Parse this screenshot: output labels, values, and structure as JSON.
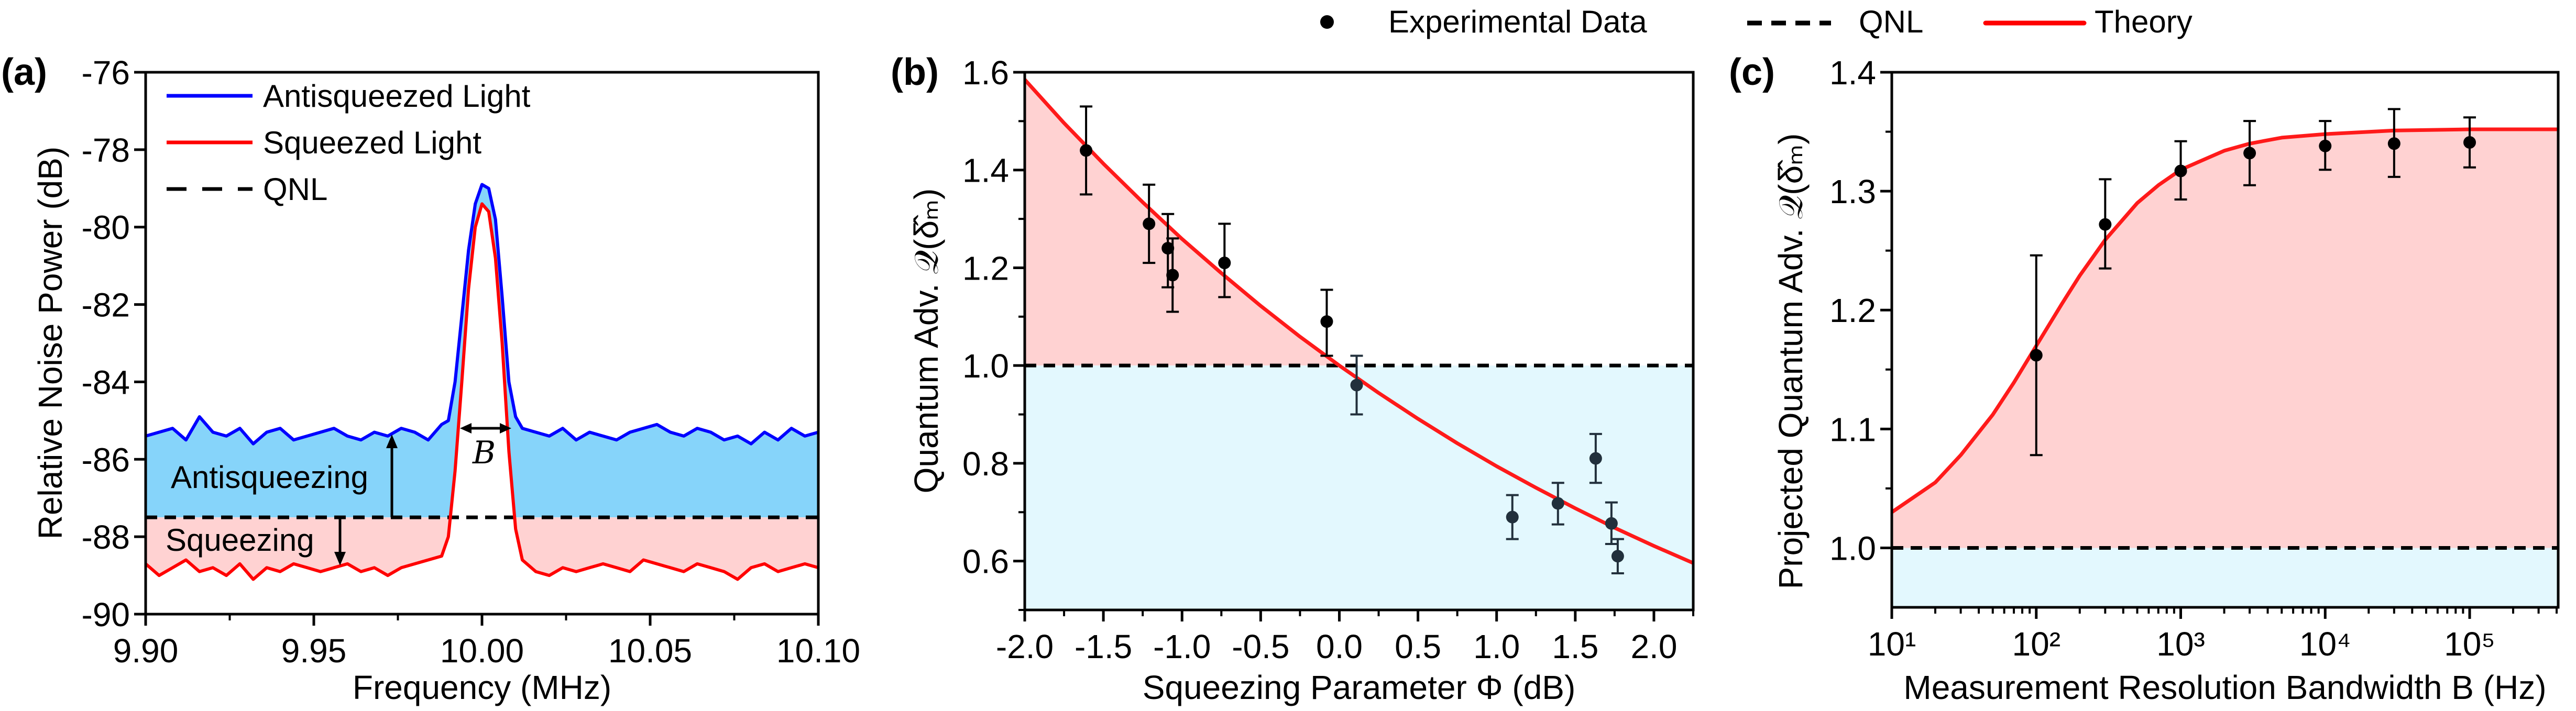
{
  "legend_top": {
    "experimental": "Experimental Data",
    "qnl": "QNL",
    "theory": "Theory"
  },
  "colors": {
    "antisqueezed": "#0000ff",
    "squeezed": "#ff0000",
    "theory": "#ff1a1a",
    "qnl": "#000000",
    "antisqueezing_fill": "#86d4fa",
    "advantage_fill": "#ffd2d2",
    "below_qnl_fill": "#e3f8fe"
  },
  "chart_data": [
    {
      "panel": "(a)",
      "type": "line",
      "xlabel": "Frequency (MHz)",
      "ylabel": "Relative Noise Power (dB)",
      "xlim": [
        9.9,
        10.1
      ],
      "ylim": [
        -90,
        -76
      ],
      "x_ticks": [
        9.9,
        9.95,
        10.0,
        10.05,
        10.1
      ],
      "x_tick_labels": [
        "9.90",
        "9.95",
        "10.00",
        "10.05",
        "10.10"
      ],
      "y_ticks": [
        -90,
        -88,
        -86,
        -84,
        -82,
        -80,
        -78,
        -76
      ],
      "y_tick_labels": [
        "-90",
        "-88",
        "-86",
        "-84",
        "-82",
        "-80",
        "-78",
        "-76"
      ],
      "legend": [
        "Antisqueezed Light",
        "Squeezed Light",
        "QNL"
      ],
      "legend_position": "top-left",
      "qnl_level": -87.5,
      "annotations": {
        "antisqueezing": "Antisqueezing",
        "squeezing": "Squeezing",
        "bandwidth": "B"
      },
      "x": [
        9.9,
        9.904,
        9.908,
        9.912,
        9.916,
        9.92,
        9.924,
        9.928,
        9.932,
        9.936,
        9.94,
        9.944,
        9.948,
        9.952,
        9.956,
        9.96,
        9.964,
        9.968,
        9.972,
        9.976,
        9.98,
        9.984,
        9.988,
        9.99,
        9.992,
        9.994,
        9.996,
        9.998,
        10.0,
        10.002,
        10.004,
        10.006,
        10.008,
        10.01,
        10.012,
        10.016,
        10.02,
        10.024,
        10.028,
        10.032,
        10.036,
        10.04,
        10.044,
        10.048,
        10.052,
        10.056,
        10.06,
        10.064,
        10.068,
        10.072,
        10.076,
        10.08,
        10.084,
        10.088,
        10.092,
        10.096,
        10.1
      ],
      "series": [
        {
          "name": "Antisqueezed Light",
          "values": [
            -85.4,
            -85.3,
            -85.2,
            -85.5,
            -84.9,
            -85.3,
            -85.4,
            -85.2,
            -85.6,
            -85.3,
            -85.2,
            -85.5,
            -85.4,
            -85.3,
            -85.2,
            -85.4,
            -85.5,
            -85.3,
            -85.4,
            -85.2,
            -85.3,
            -85.5,
            -85.1,
            -85.0,
            -84.0,
            -82.3,
            -80.6,
            -79.4,
            -78.9,
            -79.0,
            -79.8,
            -81.8,
            -84.0,
            -84.9,
            -85.2,
            -85.3,
            -85.4,
            -85.2,
            -85.5,
            -85.3,
            -85.4,
            -85.5,
            -85.3,
            -85.2,
            -85.1,
            -85.3,
            -85.4,
            -85.2,
            -85.3,
            -85.5,
            -85.4,
            -85.6,
            -85.3,
            -85.5,
            -85.2,
            -85.4,
            -85.3
          ]
        },
        {
          "name": "Squeezed Light",
          "values": [
            -88.7,
            -89.0,
            -88.8,
            -88.6,
            -88.9,
            -88.8,
            -89.0,
            -88.7,
            -89.1,
            -88.8,
            -88.9,
            -88.7,
            -88.8,
            -88.9,
            -88.8,
            -88.7,
            -88.9,
            -88.8,
            -89.0,
            -88.8,
            -88.7,
            -88.6,
            -88.5,
            -88.0,
            -86.3,
            -84.0,
            -81.6,
            -80.0,
            -79.4,
            -79.6,
            -80.8,
            -83.0,
            -85.8,
            -87.8,
            -88.6,
            -88.9,
            -89.0,
            -88.8,
            -88.9,
            -88.8,
            -88.7,
            -88.8,
            -88.9,
            -88.6,
            -88.7,
            -88.8,
            -88.9,
            -88.7,
            -88.8,
            -88.9,
            -89.1,
            -88.8,
            -88.7,
            -88.9,
            -88.8,
            -88.7,
            -88.8
          ]
        }
      ]
    },
    {
      "panel": "(b)",
      "type": "scatter",
      "xlabel": "Squeezing Parameter Φ (dB)",
      "ylabel": "Quantum Adv. 𝒬(δ̂ₘ)",
      "xlim": [
        -2.0,
        2.25
      ],
      "ylim": [
        0.5,
        1.6
      ],
      "x_ticks": [
        -2.0,
        -1.5,
        -1.0,
        -0.5,
        0.0,
        0.5,
        1.0,
        1.5,
        2.0
      ],
      "x_tick_labels": [
        "-2.0",
        "-1.5",
        "-1.0",
        "-0.5",
        "0.0",
        "0.5",
        "1.0",
        "1.5",
        "2.0"
      ],
      "y_ticks": [
        0.6,
        0.8,
        1.0,
        1.2,
        1.4,
        1.6
      ],
      "y_tick_labels": [
        "0.6",
        "0.8",
        "1.0",
        "1.2",
        "1.4",
        "1.6"
      ],
      "qnl_level": 1.0,
      "experimental": {
        "x": [
          -1.61,
          -1.21,
          -1.09,
          -1.06,
          -0.73,
          -0.08,
          0.11,
          1.1,
          1.39,
          1.63,
          1.73,
          1.77
        ],
        "y": [
          1.44,
          1.29,
          1.24,
          1.185,
          1.21,
          1.09,
          0.96,
          0.69,
          0.718,
          0.81,
          0.677,
          0.61
        ],
        "err_low": [
          1.35,
          1.21,
          1.16,
          1.11,
          1.14,
          1.02,
          0.9,
          0.645,
          0.675,
          0.76,
          0.635,
          0.575
        ],
        "err_high": [
          1.53,
          1.37,
          1.31,
          1.26,
          1.29,
          1.155,
          1.02,
          0.735,
          0.76,
          0.86,
          0.72,
          0.645
        ]
      },
      "theory": {
        "x": [
          -2.0,
          -1.75,
          -1.5,
          -1.25,
          -1.0,
          -0.75,
          -0.5,
          -0.25,
          0.0,
          0.25,
          0.5,
          0.75,
          1.0,
          1.25,
          1.5,
          1.75,
          2.0,
          2.25
        ],
        "y": [
          1.585,
          1.496,
          1.413,
          1.334,
          1.259,
          1.189,
          1.122,
          1.059,
          1.0,
          0.944,
          0.891,
          0.841,
          0.794,
          0.75,
          0.708,
          0.668,
          0.631,
          0.596
        ]
      }
    },
    {
      "panel": "(c)",
      "type": "scatter",
      "xscale": "log",
      "xlabel": "Measurement Resolution Bandwidth B (Hz)",
      "ylabel": "Projected Quantum Adv. 𝒬(δ̂ₘ)",
      "xlim": [
        10,
        410000
      ],
      "ylim": [
        0.95,
        1.4
      ],
      "x_ticks": [
        10,
        100,
        1000,
        10000,
        100000
      ],
      "x_tick_labels": [
        "10¹",
        "10²",
        "10³",
        "10⁴",
        "10⁵"
      ],
      "y_ticks": [
        1.0,
        1.1,
        1.2,
        1.3,
        1.4
      ],
      "y_tick_labels": [
        "1.0",
        "1.1",
        "1.2",
        "1.3",
        "1.4"
      ],
      "qnl_level": 1.0,
      "experimental": {
        "x": [
          100,
          300,
          1000,
          3000,
          10000,
          30000,
          100000
        ],
        "y": [
          1.162,
          1.272,
          1.317,
          1.332,
          1.338,
          1.34,
          1.341
        ],
        "err_low": [
          1.078,
          1.235,
          1.293,
          1.305,
          1.318,
          1.312,
          1.32
        ],
        "err_high": [
          1.246,
          1.31,
          1.342,
          1.359,
          1.359,
          1.369,
          1.362
        ]
      },
      "theory": {
        "x": [
          10,
          20,
          30,
          50,
          70,
          100,
          150,
          200,
          300,
          500,
          700,
          1000,
          2000,
          3000,
          5000,
          10000,
          30000,
          100000,
          410000
        ],
        "y": [
          1.03,
          1.055,
          1.078,
          1.112,
          1.139,
          1.17,
          1.205,
          1.229,
          1.259,
          1.29,
          1.305,
          1.318,
          1.334,
          1.34,
          1.345,
          1.348,
          1.351,
          1.352,
          1.352
        ]
      }
    }
  ]
}
